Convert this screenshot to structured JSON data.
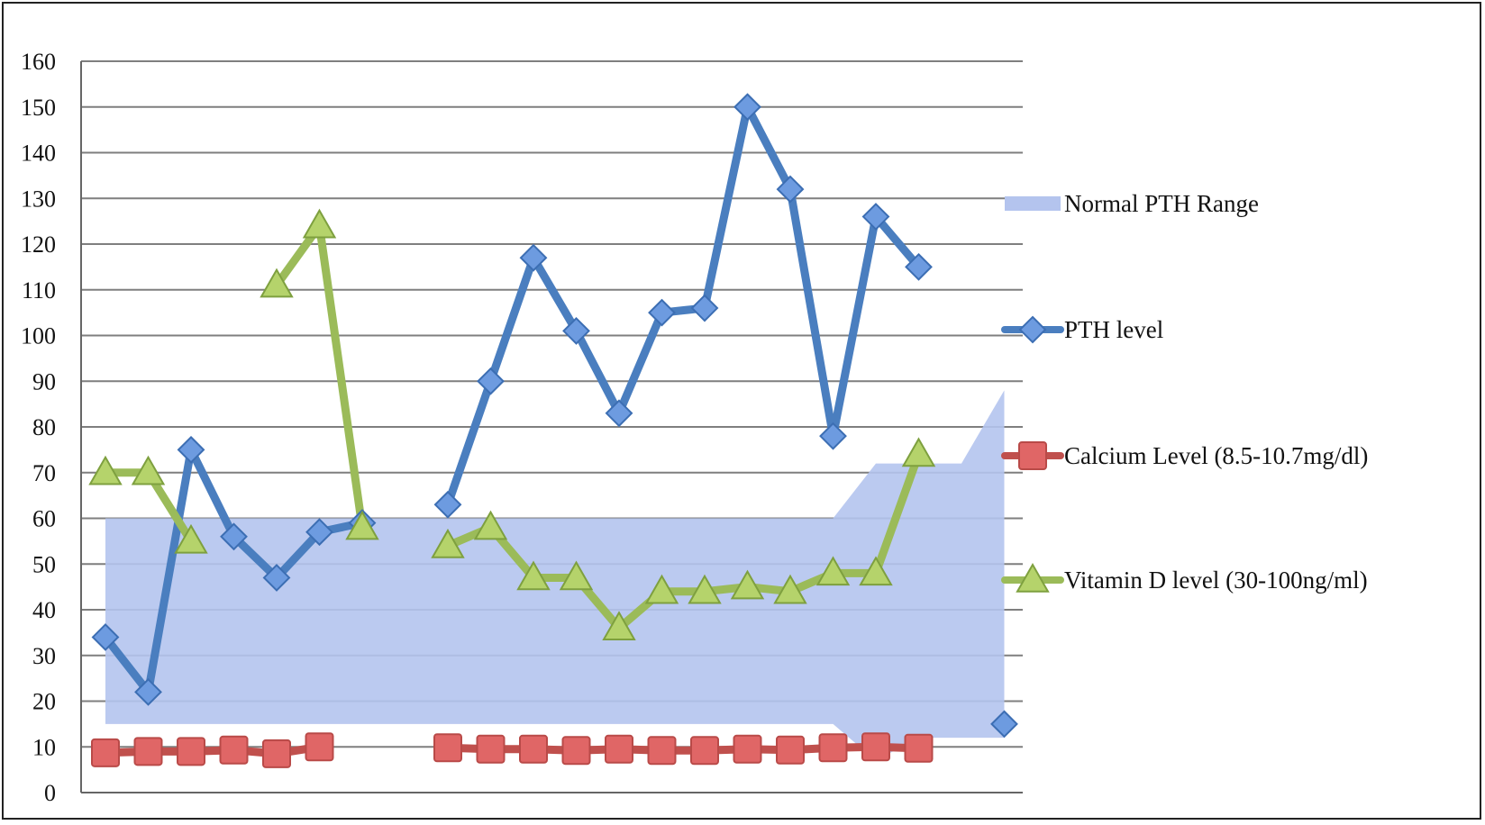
{
  "chart_data": {
    "type": "line",
    "title": "",
    "xlabel": "",
    "ylabel": "",
    "ylim": [
      0,
      160
    ],
    "yticks": [
      0,
      10,
      20,
      30,
      40,
      50,
      60,
      70,
      80,
      90,
      100,
      110,
      120,
      130,
      140,
      150,
      160
    ],
    "grid": true,
    "legend_position": "right",
    "x": [
      1,
      2,
      3,
      4,
      5,
      6,
      7,
      8,
      9,
      10,
      11,
      12,
      13,
      14,
      15,
      16,
      17,
      18,
      19,
      20,
      21,
      22
    ],
    "series": [
      {
        "name": "Normal PTH Range",
        "kind": "area_band",
        "color": "#b4c4ee",
        "lower": [
          15,
          15,
          15,
          15,
          15,
          15,
          15,
          15,
          15,
          15,
          15,
          15,
          15,
          15,
          15,
          15,
          15,
          15,
          7,
          12,
          12,
          12
        ],
        "upper": [
          60,
          60,
          60,
          60,
          60,
          60,
          60,
          60,
          60,
          60,
          60,
          60,
          60,
          60,
          60,
          60,
          60,
          60,
          72,
          72,
          72,
          88
        ]
      },
      {
        "name": "PTH level",
        "kind": "line",
        "marker": "diamond",
        "color": "#4a7ebf",
        "values": [
          34,
          22,
          75,
          56,
          47,
          57,
          59,
          null,
          63,
          90,
          117,
          101,
          83,
          105,
          106,
          150,
          132,
          78,
          126,
          115,
          null,
          15
        ]
      },
      {
        "name": "Calcium Level (8.5-10.7mg/dl)",
        "kind": "line",
        "marker": "square",
        "color": "#c0504d",
        "values": [
          8.7,
          9,
          9,
          9.3,
          8.5,
          10,
          null,
          null,
          9.8,
          9.5,
          9.5,
          9.2,
          9.5,
          9.2,
          9.2,
          9.5,
          9.3,
          9.8,
          10,
          9.7,
          null,
          null
        ]
      },
      {
        "name": "Vitamin D level (30-100ng/ml)",
        "kind": "line",
        "marker": "triangle",
        "color": "#9bbb59",
        "values": [
          70,
          70,
          55,
          null,
          111,
          124,
          58,
          null,
          54,
          58,
          47,
          47,
          36,
          44,
          44,
          45,
          44,
          48,
          48,
          74,
          null,
          null
        ]
      }
    ]
  }
}
